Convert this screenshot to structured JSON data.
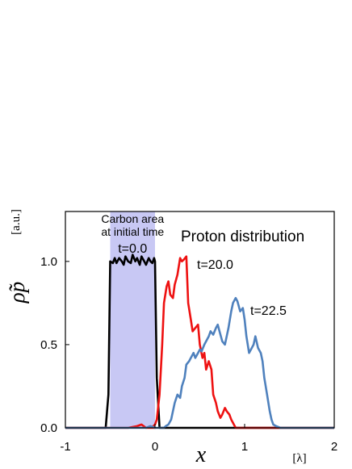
{
  "chart_data": {
    "type": "line",
    "title": "Proton distribution",
    "xlabel": "x",
    "xunit": "[λ]",
    "ylabel": "ρ̃p",
    "yunit": "[a.u.]",
    "xlim": [
      -1,
      2
    ],
    "ylim": [
      0,
      1.3
    ],
    "x_ticks": [
      {
        "value": -1,
        "label": "-1"
      },
      {
        "value": 0,
        "label": "0"
      },
      {
        "value": 1,
        "label": "1"
      },
      {
        "value": 2,
        "label": "2"
      }
    ],
    "y_ticks": [
      {
        "value": 0,
        "label": "0.0"
      },
      {
        "value": 0.5,
        "label": "0.5"
      },
      {
        "value": 1.0,
        "label": "1.0"
      }
    ],
    "grid": false,
    "shaded_region": {
      "x": [
        -0.5,
        0.0
      ],
      "label_lines": [
        "Carbon area",
        "at initial time"
      ],
      "color": "#c8c8f4"
    },
    "series": [
      {
        "name": "t=0.0",
        "color": "#000000",
        "x": [
          -1.0,
          -0.55,
          -0.52,
          -0.5,
          -0.47,
          -0.45,
          -0.43,
          -0.4,
          -0.37,
          -0.35,
          -0.33,
          -0.3,
          -0.27,
          -0.25,
          -0.22,
          -0.2,
          -0.17,
          -0.15,
          -0.12,
          -0.1,
          -0.07,
          -0.05,
          -0.03,
          -0.01,
          0.0,
          0.02,
          0.05,
          0.1,
          2.0
        ],
        "y": [
          0.0,
          0.0,
          0.2,
          1.0,
          0.99,
          1.02,
          0.99,
          1.02,
          1.0,
          0.98,
          1.03,
          1.0,
          0.99,
          1.04,
          1.0,
          1.02,
          0.98,
          1.03,
          1.0,
          0.98,
          1.02,
          1.0,
          0.99,
          1.02,
          1.0,
          0.3,
          0.0,
          0.0,
          0.0
        ]
      },
      {
        "name": "t=20.0",
        "color": "#ee1111",
        "x": [
          -1.0,
          -0.3,
          -0.2,
          -0.15,
          -0.1,
          0.0,
          -0.02,
          0.0,
          0.02,
          0.05,
          0.08,
          0.1,
          0.13,
          0.15,
          0.17,
          0.2,
          0.22,
          0.25,
          0.28,
          0.3,
          0.32,
          0.35,
          0.37,
          0.4,
          0.42,
          0.45,
          0.48,
          0.5,
          0.53,
          0.55,
          0.57,
          0.6,
          0.63,
          0.65,
          0.68,
          0.7,
          0.73,
          0.75,
          0.78,
          0.8,
          0.83,
          0.85,
          0.88,
          0.9,
          0.95,
          1.0,
          1.2,
          1.5,
          2.0
        ],
        "y": [
          0.0,
          0.0,
          0.01,
          0.02,
          0.0,
          0.0,
          0.01,
          0.02,
          0.05,
          0.2,
          0.5,
          0.75,
          0.85,
          0.88,
          0.8,
          0.78,
          0.86,
          0.92,
          1.02,
          1.0,
          1.01,
          1.03,
          0.75,
          0.65,
          0.58,
          0.6,
          0.62,
          0.5,
          0.42,
          0.45,
          0.35,
          0.4,
          0.35,
          0.2,
          0.15,
          0.1,
          0.06,
          0.08,
          0.12,
          0.1,
          0.08,
          0.05,
          0.02,
          0.0,
          0.0,
          0.0,
          0.0,
          0.0,
          0.0
        ]
      },
      {
        "name": "t=22.5",
        "color": "#4f81bd",
        "x": [
          -1.0,
          -0.1,
          -0.05,
          0.0,
          0.05,
          0.1,
          0.12,
          0.15,
          0.18,
          0.2,
          0.22,
          0.25,
          0.28,
          0.3,
          0.33,
          0.35,
          0.38,
          0.4,
          0.43,
          0.45,
          0.48,
          0.5,
          0.52,
          0.55,
          0.57,
          0.6,
          0.62,
          0.65,
          0.68,
          0.7,
          0.72,
          0.75,
          0.78,
          0.8,
          0.82,
          0.85,
          0.87,
          0.9,
          0.92,
          0.95,
          0.98,
          1.0,
          1.02,
          1.05,
          1.08,
          1.1,
          1.12,
          1.15,
          1.18,
          1.2,
          1.22,
          1.25,
          1.28,
          1.3,
          1.32,
          1.35,
          1.4,
          1.5,
          2.0
        ],
        "y": [
          0.0,
          0.0,
          0.01,
          0.0,
          0.0,
          0.0,
          0.01,
          0.02,
          0.05,
          0.1,
          0.15,
          0.2,
          0.18,
          0.25,
          0.3,
          0.38,
          0.4,
          0.42,
          0.45,
          0.42,
          0.45,
          0.47,
          0.46,
          0.5,
          0.52,
          0.55,
          0.58,
          0.56,
          0.6,
          0.62,
          0.58,
          0.52,
          0.5,
          0.55,
          0.6,
          0.7,
          0.75,
          0.78,
          0.76,
          0.7,
          0.72,
          0.65,
          0.55,
          0.45,
          0.48,
          0.5,
          0.55,
          0.48,
          0.45,
          0.4,
          0.3,
          0.2,
          0.1,
          0.05,
          0.02,
          0.01,
          0.0,
          0.0,
          0.0
        ]
      }
    ],
    "annotations": [
      {
        "text": "Carbon area"
      },
      {
        "text": "at initial time"
      },
      {
        "text": "t=0.0"
      },
      {
        "text": "Proton distribution"
      },
      {
        "text": "t=20.0"
      },
      {
        "text": "t=22.5"
      }
    ]
  }
}
